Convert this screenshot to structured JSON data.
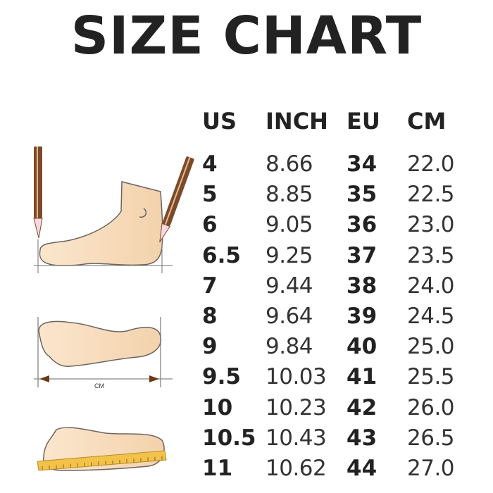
{
  "title": "SIZE CHART",
  "illustration_label": "CM",
  "headers": {
    "us": "US",
    "inch": "INCH",
    "eu": "EU",
    "cm": "CM"
  },
  "rows": [
    {
      "us": "4",
      "inch": "8.66",
      "eu": "34",
      "cm": "22.0"
    },
    {
      "us": "5",
      "inch": "8.85",
      "eu": "35",
      "cm": "22.5"
    },
    {
      "us": "6",
      "inch": "9.05",
      "eu": "36",
      "cm": "23.0"
    },
    {
      "us": "6.5",
      "inch": "9.25",
      "eu": "37",
      "cm": "23.5"
    },
    {
      "us": "7",
      "inch": "9.44",
      "eu": "38",
      "cm": "24.0"
    },
    {
      "us": "8",
      "inch": "9.64",
      "eu": "39",
      "cm": "24.5"
    },
    {
      "us": "9",
      "inch": "9.84",
      "eu": "40",
      "cm": "25.0"
    },
    {
      "us": "9.5",
      "inch": "10.03",
      "eu": "41",
      "cm": "25.5"
    },
    {
      "us": "10",
      "inch": "10.23",
      "eu": "42",
      "cm": "26.0"
    },
    {
      "us": "10.5",
      "inch": "10.43",
      "eu": "43",
      "cm": "26.5"
    },
    {
      "us": "11",
      "inch": "10.62",
      "eu": "44",
      "cm": "27.0"
    }
  ],
  "colors": {
    "skin": "#f8dfc0",
    "outline": "#6b6560",
    "pencil": "#7a4a2a",
    "ruler": "#f2c24a"
  }
}
